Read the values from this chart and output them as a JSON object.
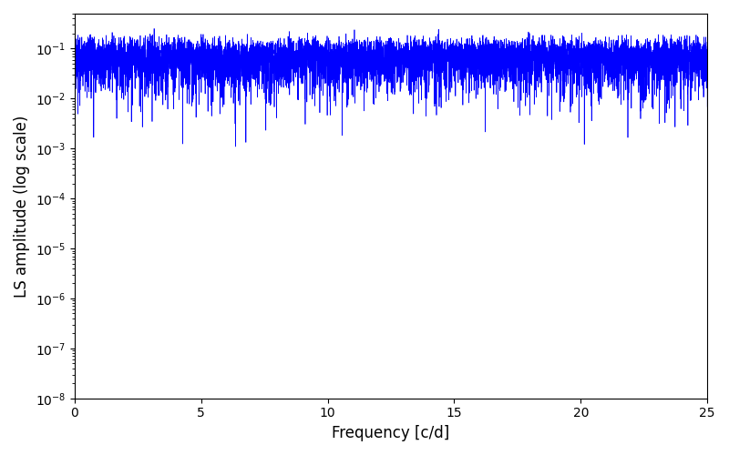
{
  "title": "",
  "xlabel": "Frequency [c/d]",
  "ylabel": "LS amplitude (log scale)",
  "xlim": [
    0,
    25
  ],
  "ylim": [
    1e-08,
    0.5
  ],
  "line_color": "#0000FF",
  "line_width": 0.5,
  "figsize": [
    8.0,
    5.0
  ],
  "dpi": 100,
  "freq_max": 25.0,
  "n_freq": 8000,
  "seed": 12345
}
